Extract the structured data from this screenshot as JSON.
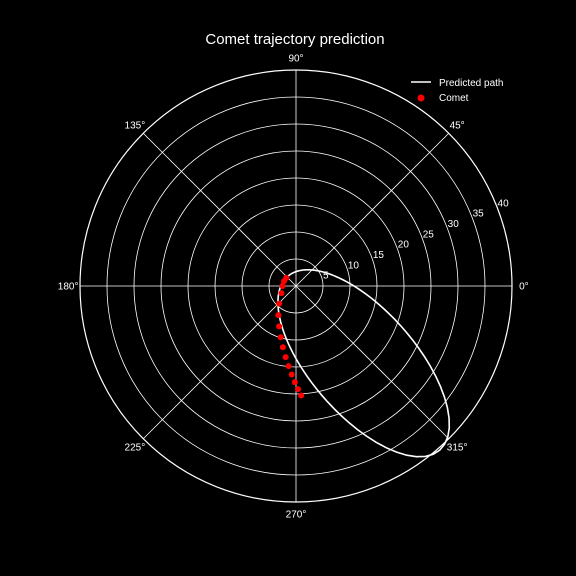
{
  "chart_data": {
    "type": "line",
    "projection": "polar",
    "title": "Comet trajectory prediction",
    "theta_tick_labels": [
      "0°",
      "45°",
      "90°",
      "135°",
      "180°",
      "225°",
      "270°",
      "315°"
    ],
    "theta_tick_values_deg": [
      0,
      45,
      90,
      135,
      180,
      225,
      270,
      315
    ],
    "r_tick_labels": [
      "5",
      "10",
      "15",
      "20",
      "25",
      "30",
      "35",
      "40"
    ],
    "r_tick_values": [
      5,
      10,
      15,
      20,
      25,
      30,
      35,
      40
    ],
    "rlim": [
      0,
      40
    ],
    "grid": true,
    "background_color": "#000000",
    "foreground_color": "#ffffff",
    "legend": {
      "placement": "top-right",
      "entries": [
        "Predicted path",
        "Comet"
      ]
    },
    "series": [
      {
        "name": "Predicted path",
        "kind": "line",
        "color": "#ffffff",
        "orbit": {
          "perihelion_r": 2.35,
          "aphelion_r": 40.4,
          "perihelion_theta_deg": 131.2,
          "aphelion_theta_deg": 311.2
        }
      },
      {
        "name": "Comet",
        "kind": "scatter",
        "color": "#ff0000",
        "points": [
          {
            "theta_deg": 272.7,
            "r": 20.3
          },
          {
            "theta_deg": 271.1,
            "r": 19.1
          },
          {
            "theta_deg": 269.3,
            "r": 17.8
          },
          {
            "theta_deg": 267.2,
            "r": 16.4
          },
          {
            "theta_deg": 264.7,
            "r": 14.9
          },
          {
            "theta_deg": 261.7,
            "r": 13.3
          },
          {
            "theta_deg": 257.9,
            "r": 11.6
          },
          {
            "theta_deg": 253.3,
            "r": 9.9
          },
          {
            "theta_deg": 247.3,
            "r": 8.1
          },
          {
            "theta_deg": 238.8,
            "r": 6.3
          },
          {
            "theta_deg": 226.3,
            "r": 4.5
          },
          {
            "theta_deg": 206.0,
            "r": 3.0
          },
          {
            "theta_deg": 180.0,
            "r": 2.5
          },
          {
            "theta_deg": 158.0,
            "r": 2.4
          },
          {
            "theta_deg": 140.0,
            "r": 2.35
          }
        ]
      }
    ]
  }
}
